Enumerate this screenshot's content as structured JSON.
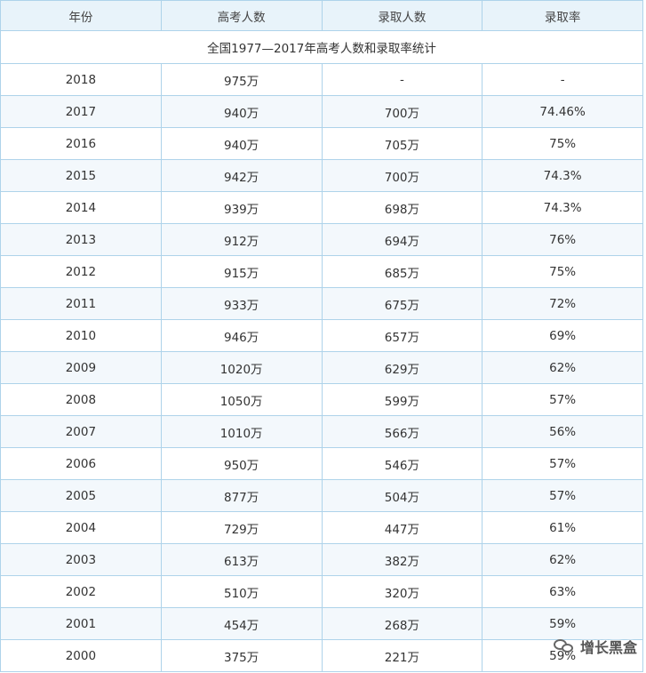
{
  "header": {
    "year": "年份",
    "examinees": "高考人数",
    "admitted": "录取人数",
    "rate": "录取率"
  },
  "caption": "全国1977—2017年高考人数和录取率统计",
  "rows": [
    {
      "year": "2018",
      "examinees": "975万",
      "admitted": "-",
      "rate": "-"
    },
    {
      "year": "2017",
      "examinees": "940万",
      "admitted": "700万",
      "rate": "74.46%"
    },
    {
      "year": "2016",
      "examinees": "940万",
      "admitted": "705万",
      "rate": "75%"
    },
    {
      "year": "2015",
      "examinees": "942万",
      "admitted": "700万",
      "rate": "74.3%"
    },
    {
      "year": "2014",
      "examinees": "939万",
      "admitted": "698万",
      "rate": "74.3%"
    },
    {
      "year": "2013",
      "examinees": "912万",
      "admitted": "694万",
      "rate": "76%"
    },
    {
      "year": "2012",
      "examinees": "915万",
      "admitted": "685万",
      "rate": "75%"
    },
    {
      "year": "2011",
      "examinees": "933万",
      "admitted": "675万",
      "rate": "72%"
    },
    {
      "year": "2010",
      "examinees": "946万",
      "admitted": "657万",
      "rate": "69%"
    },
    {
      "year": "2009",
      "examinees": "1020万",
      "admitted": "629万",
      "rate": "62%"
    },
    {
      "year": "2008",
      "examinees": "1050万",
      "admitted": "599万",
      "rate": "57%"
    },
    {
      "year": "2007",
      "examinees": "1010万",
      "admitted": "566万",
      "rate": "56%"
    },
    {
      "year": "2006",
      "examinees": "950万",
      "admitted": "546万",
      "rate": "57%"
    },
    {
      "year": "2005",
      "examinees": "877万",
      "admitted": "504万",
      "rate": "57%"
    },
    {
      "year": "2004",
      "examinees": "729万",
      "admitted": "447万",
      "rate": "61%"
    },
    {
      "year": "2003",
      "examinees": "613万",
      "admitted": "382万",
      "rate": "62%"
    },
    {
      "year": "2002",
      "examinees": "510万",
      "admitted": "320万",
      "rate": "63%"
    },
    {
      "year": "2001",
      "examinees": "454万",
      "admitted": "268万",
      "rate": "59%"
    },
    {
      "year": "2000",
      "examinees": "375万",
      "admitted": "221万",
      "rate": "59%"
    }
  ],
  "watermark": {
    "icon": "wechat-icon",
    "text": "增长黑盒"
  }
}
